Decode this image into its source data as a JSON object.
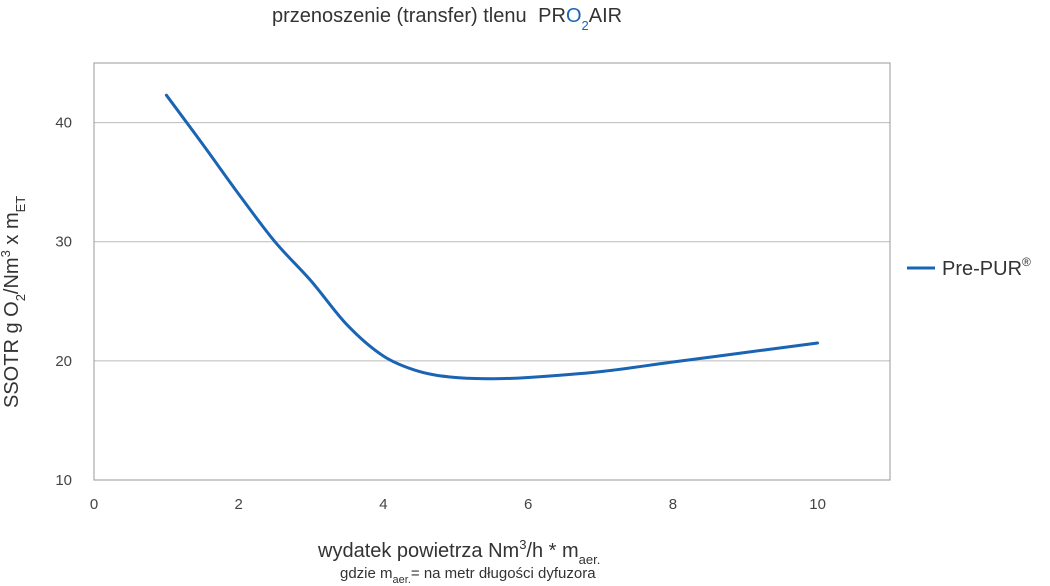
{
  "chart_data": {
    "type": "line",
    "title": "przenoszenie (transfer) tlenu",
    "brand": {
      "p1": "PR",
      "o": "O",
      "sub": "2",
      "p2": "AIR"
    },
    "xlabel": {
      "main": "wydatek powietrza Nm",
      "sup": "3",
      "mid": "/h * m",
      "sub": "aer."
    },
    "xnote": {
      "pre": "gdzie m",
      "sub": "aer.",
      "post": "= na metr długości dyfuzora"
    },
    "ylabel": {
      "p1": "SSOTR g O",
      "sub1": "2",
      "p2": "/Nm",
      "sup": "3",
      "p3": " x m",
      "sub2": "ET"
    },
    "xlim": [
      0,
      11
    ],
    "ylim": [
      10,
      45
    ],
    "xticks": [
      0,
      2,
      4,
      6,
      8,
      10
    ],
    "yticks": [
      10,
      20,
      30,
      40
    ],
    "grid": true,
    "legend_position": "right",
    "series": [
      {
        "name": "Pre-PUR",
        "name_sup": "®",
        "color": "#1a64b4",
        "x": [
          1.0,
          1.5,
          2.0,
          2.5,
          3.0,
          3.5,
          4.0,
          4.5,
          5.0,
          5.5,
          6.0,
          7.0,
          8.0,
          9.0,
          10.0
        ],
        "y": [
          42.3,
          38.2,
          34.0,
          30.0,
          26.7,
          23.0,
          20.4,
          19.1,
          18.6,
          18.5,
          18.6,
          19.1,
          19.9,
          20.7,
          21.5
        ]
      }
    ]
  },
  "colors": {
    "accent": "#1a64b4",
    "grid": "#bbbbbb",
    "frame": "#999999"
  }
}
